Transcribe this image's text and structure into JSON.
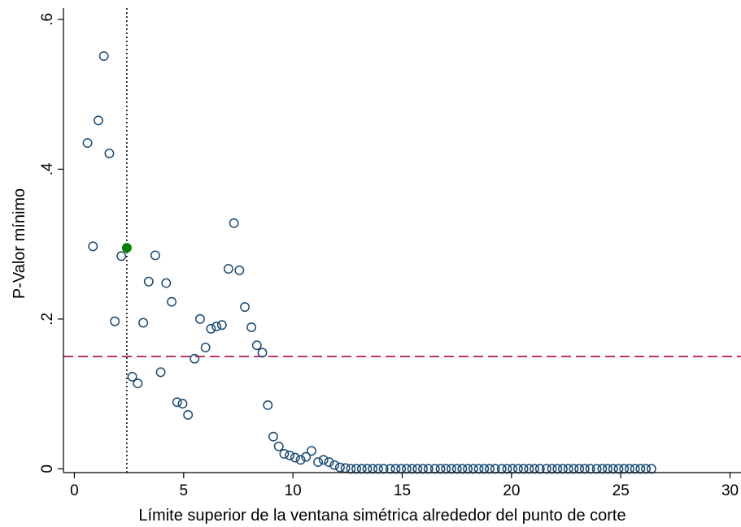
{
  "chart_data": {
    "type": "scatter",
    "title": "",
    "xlabel": "Límite superior de la ventana simétrica alrededor del punto de corte",
    "ylabel": "P-Valor mínimo",
    "xlim": [
      -0.5,
      30.5
    ],
    "ylim": [
      -0.005,
      0.615
    ],
    "xticks": [
      0,
      5,
      10,
      15,
      20,
      25,
      30
    ],
    "xtick_labels": [
      "0",
      "5",
      "10",
      "15",
      "20",
      "25",
      "30"
    ],
    "yticks": [
      0,
      0.2,
      0.4,
      0.6
    ],
    "ytick_labels": [
      "0",
      ".2",
      ".4",
      ".6"
    ],
    "grid": false,
    "legend": "none",
    "series": [
      {
        "marker": "hollow-circle",
        "color": "#1a4a73",
        "x": [
          0.6,
          0.85,
          1.1,
          1.35,
          1.6,
          1.85,
          2.15,
          2.65,
          2.9,
          3.15,
          3.4,
          3.7,
          3.95,
          4.2,
          4.45,
          4.7,
          4.95,
          5.2,
          5.5,
          5.75,
          6.0,
          6.25,
          6.5,
          6.75,
          7.05,
          7.3,
          7.55,
          7.8,
          8.1,
          8.35,
          8.6,
          8.85,
          9.1,
          9.35,
          9.6,
          9.85,
          10.1,
          10.35,
          10.6,
          10.85,
          11.15,
          11.4,
          11.65,
          11.9,
          12.15,
          12.4,
          12.65,
          12.9,
          13.15,
          13.4,
          13.65,
          13.9,
          14.15,
          14.45,
          14.7,
          14.95,
          15.2,
          15.45,
          15.7,
          15.95,
          16.2,
          16.5,
          16.75,
          17.0,
          17.25,
          17.5,
          17.75,
          18.0,
          18.25,
          18.5,
          18.75,
          19.0,
          19.25,
          19.55,
          19.8,
          20.05,
          20.3,
          20.55,
          20.8,
          21.05,
          21.3,
          21.6,
          21.85,
          22.1,
          22.35,
          22.6,
          22.85,
          23.1,
          23.35,
          23.6,
          23.9,
          24.15,
          24.4,
          24.65,
          24.9,
          25.15,
          25.4,
          25.65,
          25.9,
          26.15,
          26.4
        ],
        "y": [
          0.435,
          0.297,
          0.465,
          0.551,
          0.421,
          0.197,
          0.284,
          0.123,
          0.114,
          0.195,
          0.25,
          0.285,
          0.129,
          0.248,
          0.223,
          0.089,
          0.087,
          0.072,
          0.147,
          0.2,
          0.162,
          0.187,
          0.19,
          0.192,
          0.267,
          0.328,
          0.265,
          0.216,
          0.189,
          0.165,
          0.155,
          0.085,
          0.043,
          0.03,
          0.02,
          0.018,
          0.015,
          0.012,
          0.016,
          0.024,
          0.009,
          0.012,
          0.009,
          0.005,
          0.002,
          0.001,
          0.0,
          0.0,
          0.0,
          0.0,
          0.0,
          0.0,
          0.0,
          0.0,
          0.0,
          0.0,
          0.0,
          0.0,
          0.0,
          0.0,
          0.0,
          0.0,
          0.0,
          0.0,
          0.0,
          0.0,
          0.0,
          0.0,
          0.0,
          0.0,
          0.0,
          0.0,
          0.0,
          0.0,
          0.0,
          0.0,
          0.0,
          0.0,
          0.0,
          0.0,
          0.0,
          0.0,
          0.0,
          0.0,
          0.0,
          0.0,
          0.0,
          0.0,
          0.0,
          0.0,
          0.0,
          0.0,
          0.0,
          0.0,
          0.0,
          0.0,
          0.0,
          0.0,
          0.0,
          0.0,
          0.0
        ]
      }
    ],
    "highlight_point": {
      "x": 2.4,
      "y": 0.295,
      "color": "#008000",
      "marker": "filled-circle"
    },
    "reference_lines": [
      {
        "orientation": "vertical",
        "value": 2.4,
        "style": "dotted",
        "color": "#000000"
      },
      {
        "orientation": "horizontal",
        "value": 0.15,
        "style": "dashed",
        "color": "#b5174b"
      }
    ]
  }
}
